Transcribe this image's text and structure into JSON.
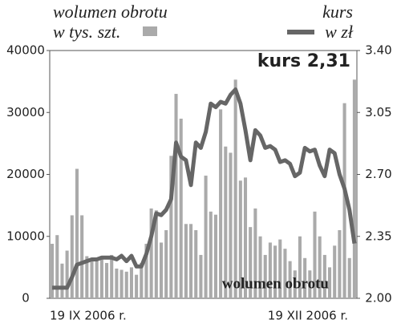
{
  "chart_data": {
    "type": "bar_line",
    "series": [
      {
        "name": "wolumen obrotu",
        "unit": "w tys. szt.",
        "color": "#aaaaaa",
        "values": [
          8800,
          10200,
          5600,
          7700,
          13400,
          20900,
          13400,
          6800,
          6300,
          6500,
          6700,
          5700,
          7000,
          4800,
          4600,
          4300,
          5000,
          3800,
          5700,
          8800,
          14500,
          14200,
          9000,
          11000,
          23000,
          33000,
          29000,
          12000,
          12000,
          11000,
          7000,
          19800,
          14000,
          13500,
          30500,
          24500,
          23500,
          35300,
          19000,
          19500,
          11500,
          14500,
          10000,
          7000,
          9000,
          8500,
          9500,
          8000,
          6000,
          4500,
          10000,
          6500,
          4500,
          14000,
          10000,
          7000,
          5000,
          8500,
          11000,
          31500,
          6500,
          35300
        ]
      },
      {
        "name": "kurs",
        "unit": "w zł",
        "color": "#666666",
        "axis": "y2",
        "values": [
          2.06,
          2.06,
          2.06,
          2.06,
          2.12,
          2.19,
          2.2,
          2.21,
          2.22,
          2.22,
          2.23,
          2.23,
          2.23,
          2.22,
          2.24,
          2.21,
          2.24,
          2.18,
          2.18,
          2.25,
          2.35,
          2.48,
          2.47,
          2.5,
          2.56,
          2.88,
          2.8,
          2.78,
          2.64,
          2.88,
          2.85,
          2.94,
          3.1,
          3.08,
          3.11,
          3.1,
          3.15,
          3.18,
          3.1,
          2.95,
          2.78,
          2.95,
          2.92,
          2.85,
          2.86,
          2.84,
          2.77,
          2.78,
          2.76,
          2.69,
          2.71,
          2.85,
          2.83,
          2.84,
          2.75,
          2.69,
          2.84,
          2.82,
          2.7,
          2.62,
          2.5,
          2.31
        ]
      }
    ],
    "categories": [
      "19 IX 2006 r.",
      null,
      null,
      null,
      null,
      null,
      null,
      null,
      null,
      null,
      null,
      null,
      null,
      null,
      null,
      null,
      null,
      null,
      null,
      null,
      null,
      null,
      null,
      null,
      null,
      null,
      null,
      null,
      null,
      null,
      null,
      null,
      null,
      null,
      null,
      null,
      null,
      null,
      null,
      null,
      null,
      null,
      null,
      null,
      "19 XII 2006 r.",
      null,
      null,
      null,
      null,
      null,
      null,
      null,
      null,
      null,
      null,
      null,
      null,
      null,
      null,
      null,
      null,
      null
    ],
    "ylim": [
      0,
      40000
    ],
    "yticks": [
      0,
      10000,
      20000,
      30000,
      40000
    ],
    "y2lim": [
      2,
      3.4
    ],
    "y2ticks": [
      {
        "value": 2,
        "label": "2.00"
      },
      2.35,
      {
        "value": 2.7,
        "label": "2.70"
      },
      3.05,
      {
        "value": 3.4,
        "label": "3.40"
      }
    ],
    "annotations": [
      "kurs 2,31",
      "wolumen obrotu"
    ]
  }
}
